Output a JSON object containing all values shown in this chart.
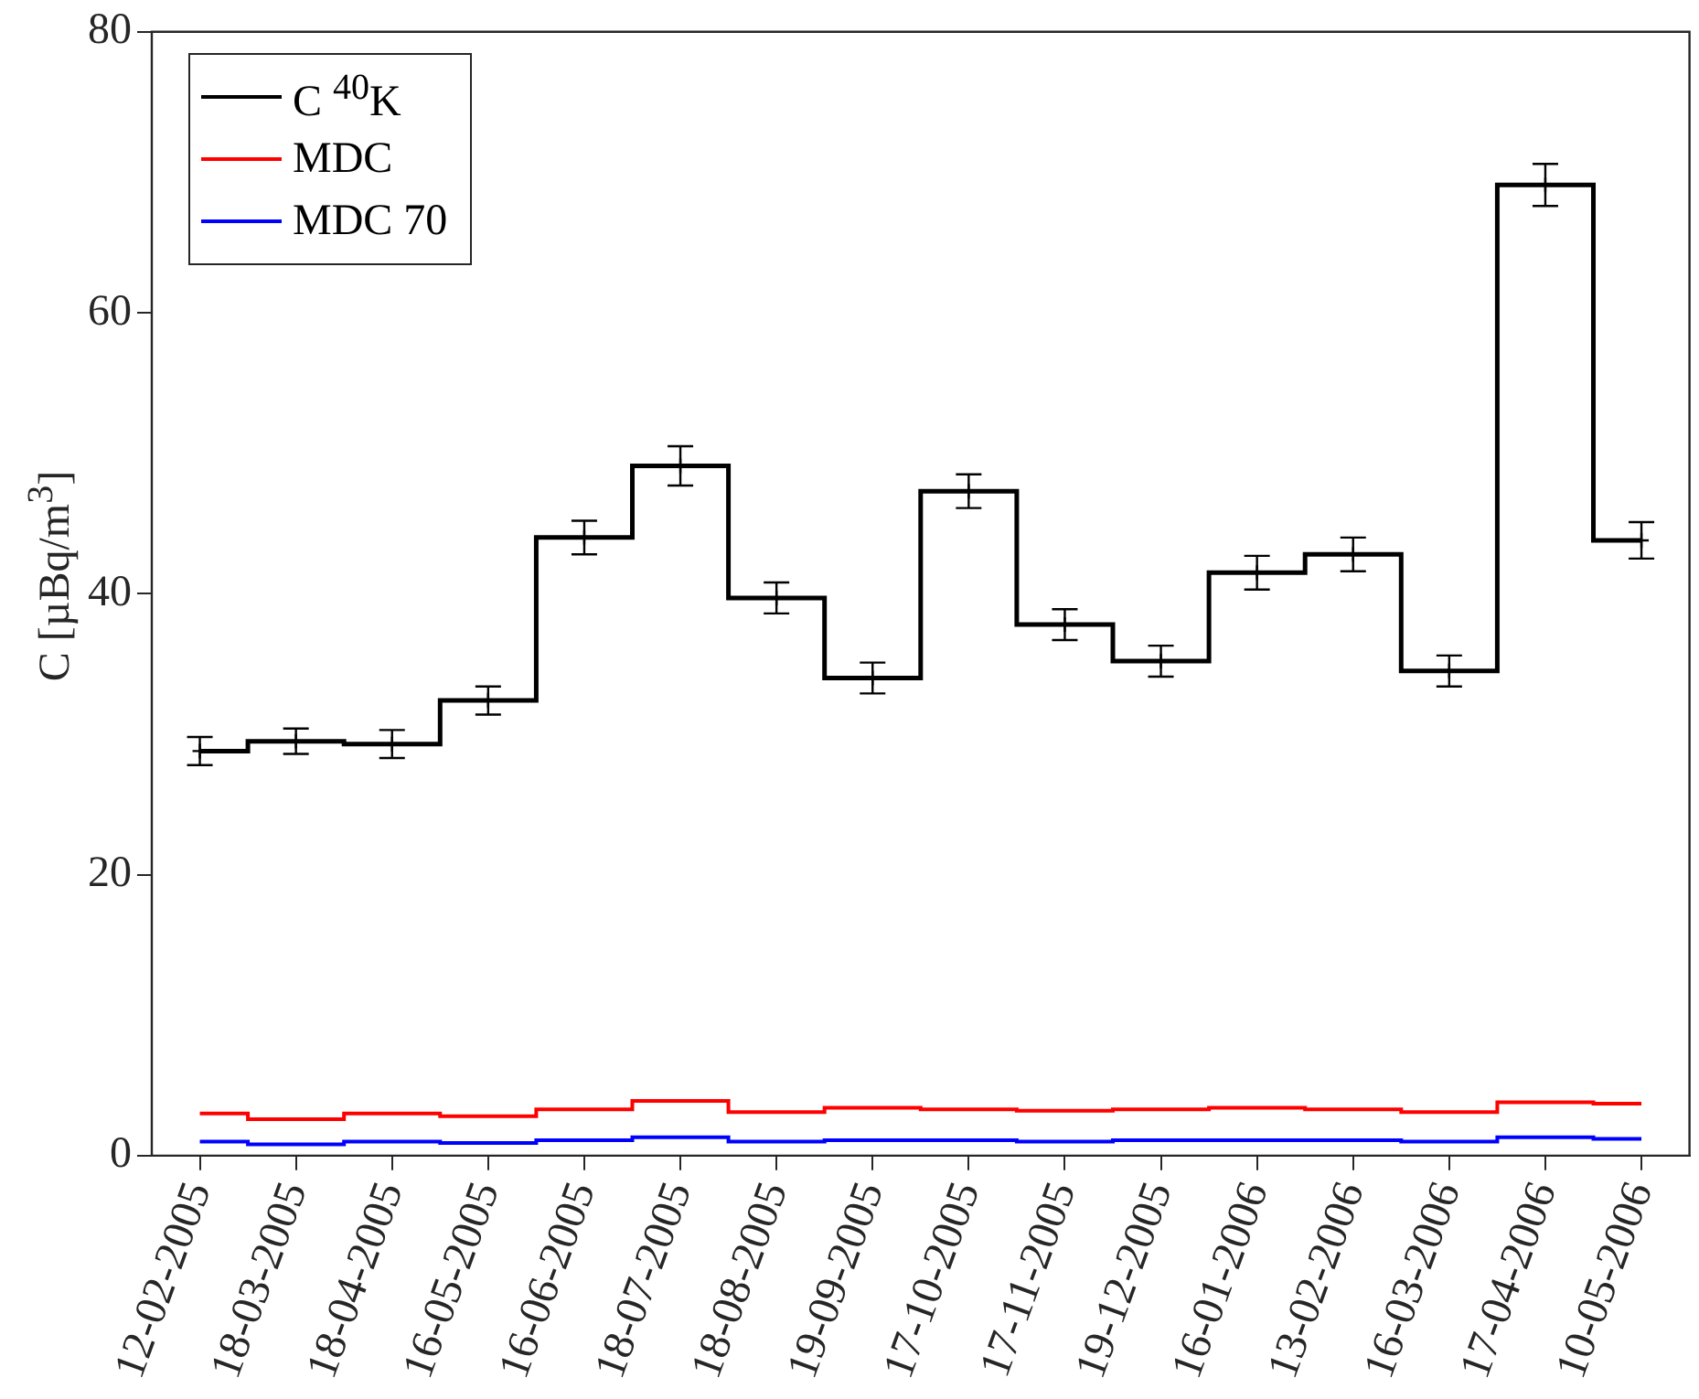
{
  "chart_data": {
    "type": "step",
    "ylabel": "C [µBq/m$^{3}$]",
    "categories": [
      "12-02-2005",
      "18-03-2005",
      "18-04-2005",
      "16-05-2005",
      "16-06-2005",
      "18-07-2005",
      "18-08-2005",
      "19-09-2005",
      "17-10-2005",
      "17-11-2005",
      "19-12-2005",
      "16-01-2006",
      "13-02-2006",
      "16-03-2006",
      "17-04-2006",
      "10-05-2006"
    ],
    "series": [
      {
        "name": "C $^{40}$K",
        "color": "#000000",
        "values": [
          28.8,
          29.5,
          29.3,
          32.4,
          44.0,
          49.1,
          39.7,
          34.0,
          47.3,
          37.8,
          35.2,
          41.5,
          42.8,
          34.5,
          69.1,
          43.8
        ],
        "marker": "cross",
        "errors": [
          1.0,
          0.9,
          1.0,
          1.0,
          1.2,
          1.4,
          1.1,
          1.1,
          1.2,
          1.1,
          1.1,
          1.2,
          1.2,
          1.1,
          1.5,
          1.3
        ]
      },
      {
        "name": "MDC",
        "color": "#ff0000",
        "values": [
          3.0,
          2.6,
          3.0,
          2.8,
          3.3,
          3.9,
          3.1,
          3.4,
          3.3,
          3.2,
          3.3,
          3.4,
          3.3,
          3.1,
          3.8,
          3.7
        ]
      },
      {
        "name": "MDC 70",
        "color": "#0000ff",
        "values": [
          1.0,
          0.8,
          1.0,
          0.9,
          1.1,
          1.3,
          1.0,
          1.1,
          1.1,
          1.0,
          1.1,
          1.1,
          1.1,
          1.0,
          1.3,
          1.2
        ]
      }
    ],
    "ylim": [
      0,
      80
    ],
    "yticks": [
      0,
      20,
      40,
      60,
      80
    ],
    "legend": "top left"
  }
}
